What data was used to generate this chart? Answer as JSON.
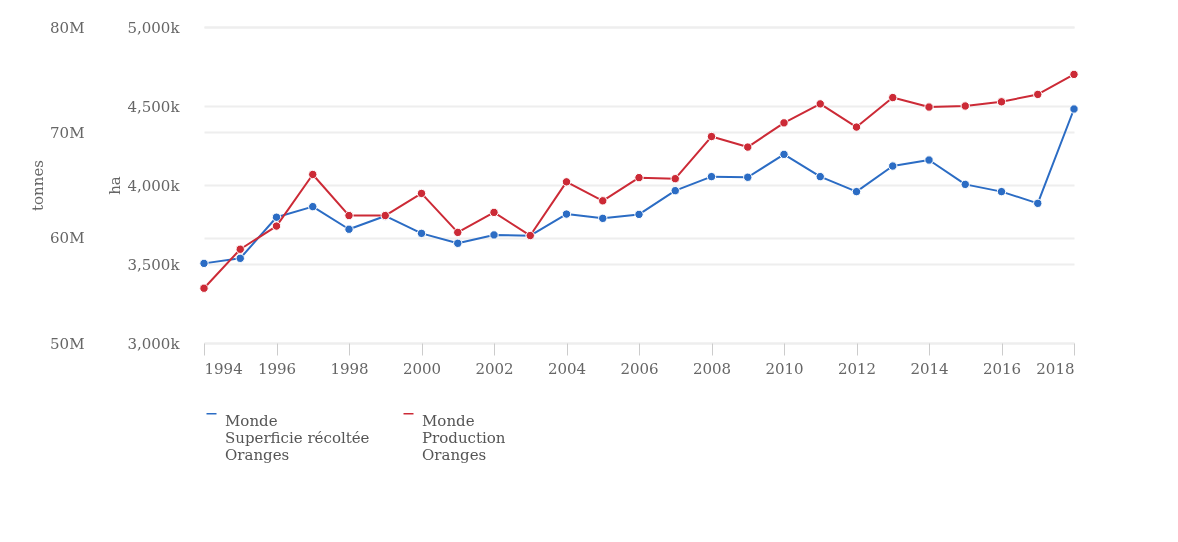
{
  "chart_data": {
    "type": "line",
    "x": [
      1994,
      1995,
      1996,
      1997,
      1998,
      1999,
      2000,
      2001,
      2002,
      2003,
      2004,
      2005,
      2006,
      2007,
      2008,
      2009,
      2010,
      2011,
      2012,
      2013,
      2014,
      2015,
      2016,
      2017,
      2018
    ],
    "series": [
      {
        "name": "Monde\nSuperficie récoltée\nOranges",
        "color": "#2b6cc4",
        "axis": "y",
        "values": [
          3504,
          3536,
          3796,
          3863,
          3720,
          3804,
          3694,
          3631,
          3684,
          3679,
          3816,
          3789,
          3814,
          3964,
          4053,
          4049,
          4194,
          4053,
          3958,
          4120,
          4158,
          4004,
          3958,
          3884,
          4481
        ]
      },
      {
        "name": "Monde\nProduction\nOranges",
        "color": "#cc2a36",
        "axis": "y2",
        "values": [
          55.2,
          58.9,
          61.1,
          66.0,
          62.1,
          62.1,
          64.2,
          60.5,
          62.4,
          60.2,
          65.3,
          63.5,
          65.7,
          65.6,
          69.6,
          68.6,
          70.9,
          72.7,
          70.5,
          73.3,
          72.4,
          72.5,
          72.9,
          73.6,
          75.5
        ]
      }
    ],
    "ylabel": "ha",
    "y2label": "tonnes",
    "xlim": [
      1994,
      2018
    ],
    "xticks": [
      1994,
      1996,
      1998,
      2000,
      2002,
      2004,
      2006,
      2008,
      2010,
      2012,
      2014,
      2016,
      2018
    ],
    "ylim": [
      3000,
      5000
    ],
    "yticks": [
      {
        "value": 3000,
        "label": "3,000k"
      },
      {
        "value": 3500,
        "label": "3,500k"
      },
      {
        "value": 4000,
        "label": "4,000k"
      },
      {
        "value": 4500,
        "label": "4,500k"
      },
      {
        "value": 5000,
        "label": "5,000k"
      }
    ],
    "y2lim": [
      50,
      80
    ],
    "y2ticks": [
      {
        "value": 50,
        "label": "50M"
      },
      {
        "value": 60,
        "label": "60M"
      },
      {
        "value": 70,
        "label": "70M"
      },
      {
        "value": 80,
        "label": "80M"
      }
    ],
    "grid": "y",
    "legend": "bottom",
    "marker": "circle",
    "line_style": "solid"
  }
}
